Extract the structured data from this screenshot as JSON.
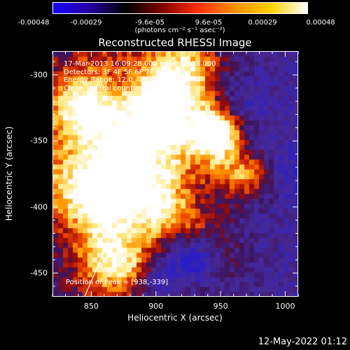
{
  "colorbar": {
    "ticks": [
      "-0.00048",
      "-0.00029",
      "-9.6e-05",
      "9.6e-05",
      "0.00029",
      "0.00048"
    ],
    "units": "(photons cm⁻² s⁻¹ asec⁻²)",
    "colors": [
      "#1a00ff",
      "#2000a0",
      "#000000",
      "#800000",
      "#ff3000",
      "#ff9000",
      "#ffd000",
      "#ffffff"
    ]
  },
  "annotations": {
    "time": "17-Mar-2013 16:09:28.000 to 16:15:28.000",
    "detectors": "Detectors: 3F 4F 5F 6F 7F 8F, Att 0",
    "energy": "Energy Range: 12.0 - 25.0 keV",
    "clean": "Clean     Total counts: 1.12E+04",
    "peak": "Position of Peak = [938,-339]"
  },
  "footer": "12-May-2022 01:12",
  "chart_data": {
    "type": "heatmap",
    "title": "Reconstructed RHESSI Image",
    "xlabel": "Heliocentric X (arcsec)",
    "ylabel": "Heliocentric Y (arcsec)",
    "xlim": [
      820,
      1010
    ],
    "ylim": [
      -468,
      -282
    ],
    "xticks": [
      850,
      900,
      950,
      1000
    ],
    "yticks": [
      -300,
      -350,
      -400,
      -450
    ],
    "colorbar_range": [
      -0.00048,
      0.00048
    ],
    "peak_position": [
      938,
      -339
    ],
    "limb_line": [
      [
        844,
        -468
      ],
      [
        926,
        -282
      ]
    ],
    "note": ""
  }
}
